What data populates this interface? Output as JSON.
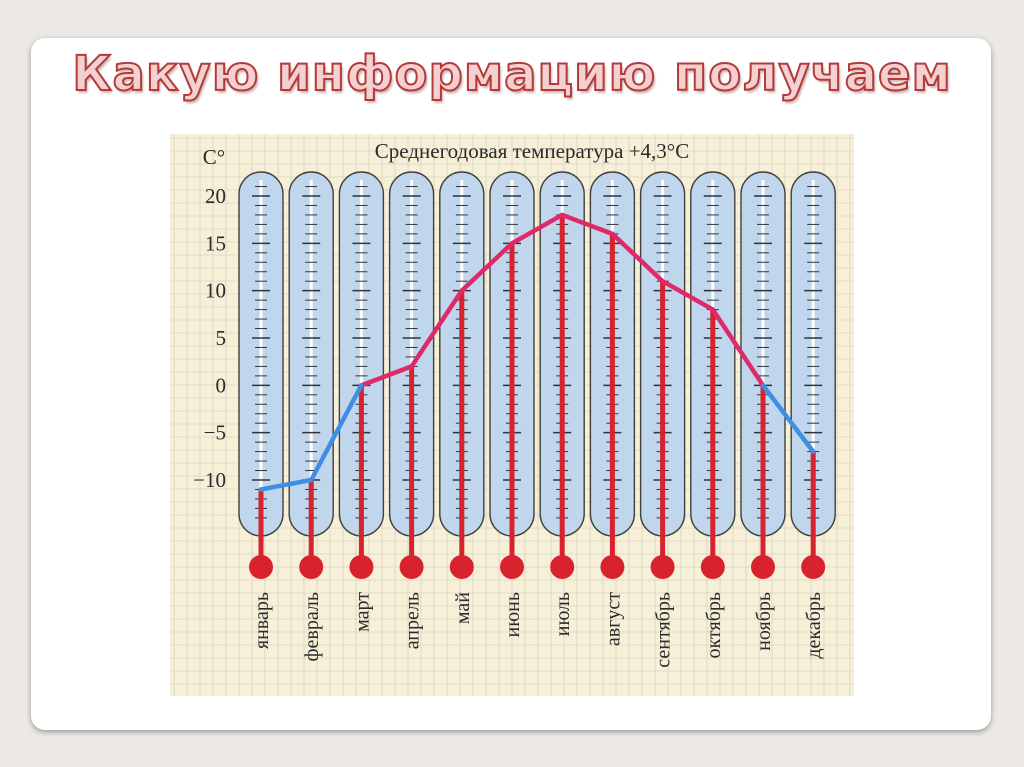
{
  "slide": {
    "title": "Какую информацию получаем"
  },
  "colors": {
    "background_paper": "#f6f0d8",
    "grid": "#cfc9b6",
    "tube_fill": "#bfd6ec",
    "tube_stroke": "#41403c",
    "mercury": "#d8232e",
    "line_warm": "#e0286a",
    "line_cold": "#3f8ee6",
    "title_fill": "#f4d0d0",
    "title_stroke": "#b43a3a"
  },
  "chart_data": {
    "type": "line",
    "title": "Среднегодовая температура +4,3°С",
    "ylabel": "С°",
    "xlabel": "",
    "ylim": [
      -10,
      20
    ],
    "yticks": [
      "20",
      "15",
      "10",
      "5",
      "0",
      "−5",
      "−10"
    ],
    "ytick_values": [
      20,
      15,
      10,
      5,
      0,
      -5,
      -10
    ],
    "grid": true,
    "categories": [
      "январь",
      "февраль",
      "март",
      "апрель",
      "май",
      "июнь",
      "июль",
      "август",
      "сентябрь",
      "октябрь",
      "ноябрь",
      "декабрь"
    ],
    "values": [
      -11,
      -10,
      0,
      2,
      10,
      15,
      18,
      16,
      11,
      8,
      0,
      -7
    ],
    "representation": "thermometers"
  }
}
